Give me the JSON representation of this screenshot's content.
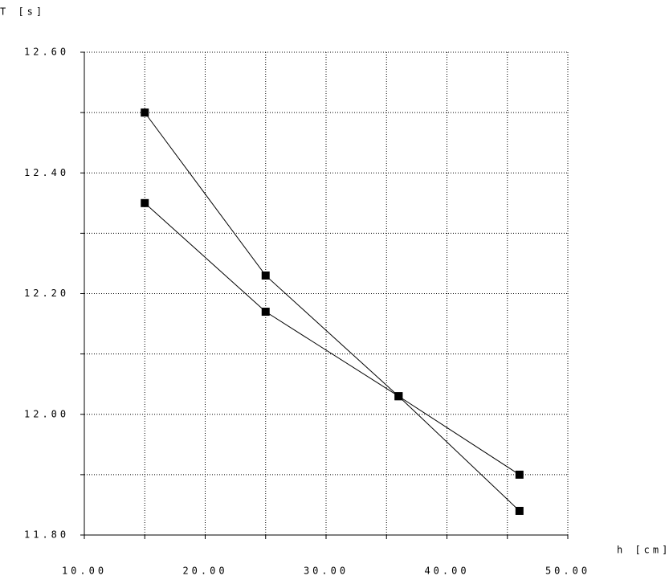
{
  "chart_data": {
    "type": "line",
    "y_label": "T [s]",
    "x_label": "h [cm]",
    "x": [
      15,
      25,
      36,
      46
    ],
    "series": [
      {
        "color": "#000000",
        "values": [
          12.5,
          12.23,
          12.03,
          11.84
        ]
      },
      {
        "color": "#000000",
        "values": [
          12.35,
          12.17,
          12.03,
          11.9
        ]
      }
    ],
    "xlim": [
      10,
      50
    ],
    "xticks": [
      {
        "value": 10,
        "label": "10.00"
      },
      {
        "value": 20,
        "label": "20.00"
      },
      {
        "value": 30,
        "label": "30.00"
      },
      {
        "value": 40,
        "label": "40.00"
      },
      {
        "value": 50,
        "label": "50.00"
      }
    ],
    "minor_xticks": [
      15,
      25,
      35,
      45
    ],
    "ylim": [
      11.8,
      12.6
    ],
    "yticks": [
      {
        "value": 11.8,
        "label": "11.80"
      },
      {
        "value": 12.0,
        "label": "12.00"
      },
      {
        "value": 12.2,
        "label": "12.20"
      },
      {
        "value": 12.4,
        "label": "12.40"
      },
      {
        "value": 12.6,
        "label": "12.60"
      }
    ],
    "minor_yticks": [
      11.9,
      12.1,
      12.3,
      12.5
    ],
    "grid": true,
    "marker": "square"
  }
}
